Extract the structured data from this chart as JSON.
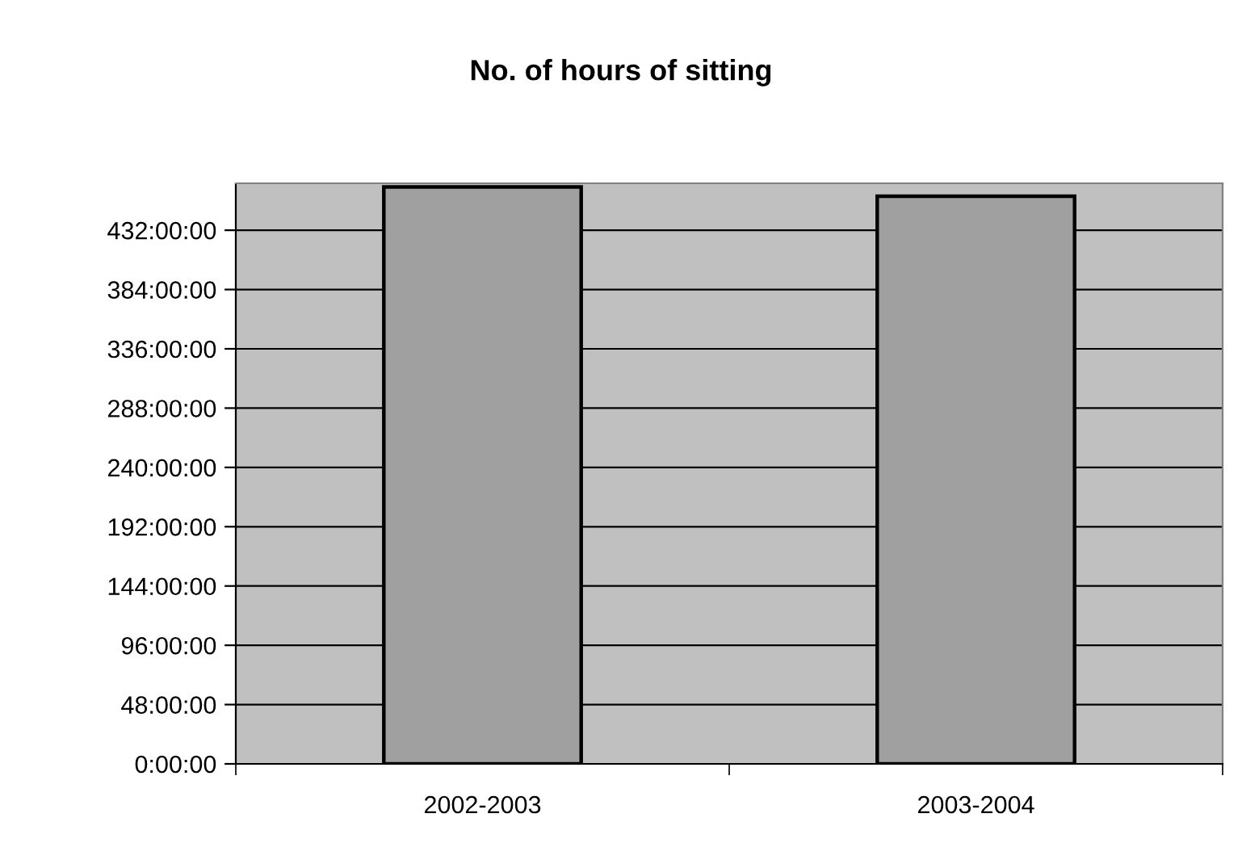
{
  "chart_data": {
    "type": "bar",
    "title": "No. of hours of sitting",
    "categories": [
      "2002-2003",
      "2003-2004"
    ],
    "values": [
      467,
      459.5
    ],
    "color": "#a0a0a0",
    "ylim": [
      0,
      470
    ],
    "yticks": [
      {
        "value": 0,
        "label": "0:00:00"
      },
      {
        "value": 48,
        "label": "48:00:00"
      },
      {
        "value": 96,
        "label": "96:00:00"
      },
      {
        "value": 144,
        "label": "144:00:00"
      },
      {
        "value": 192,
        "label": "192:00:00"
      },
      {
        "value": 240,
        "label": "240:00:00"
      },
      {
        "value": 288,
        "label": "288:00:00"
      },
      {
        "value": 336,
        "label": "336:00:00"
      },
      {
        "value": 384,
        "label": "384:00:00"
      },
      {
        "value": 432,
        "label": "432:00:00"
      }
    ],
    "grid": "y"
  }
}
